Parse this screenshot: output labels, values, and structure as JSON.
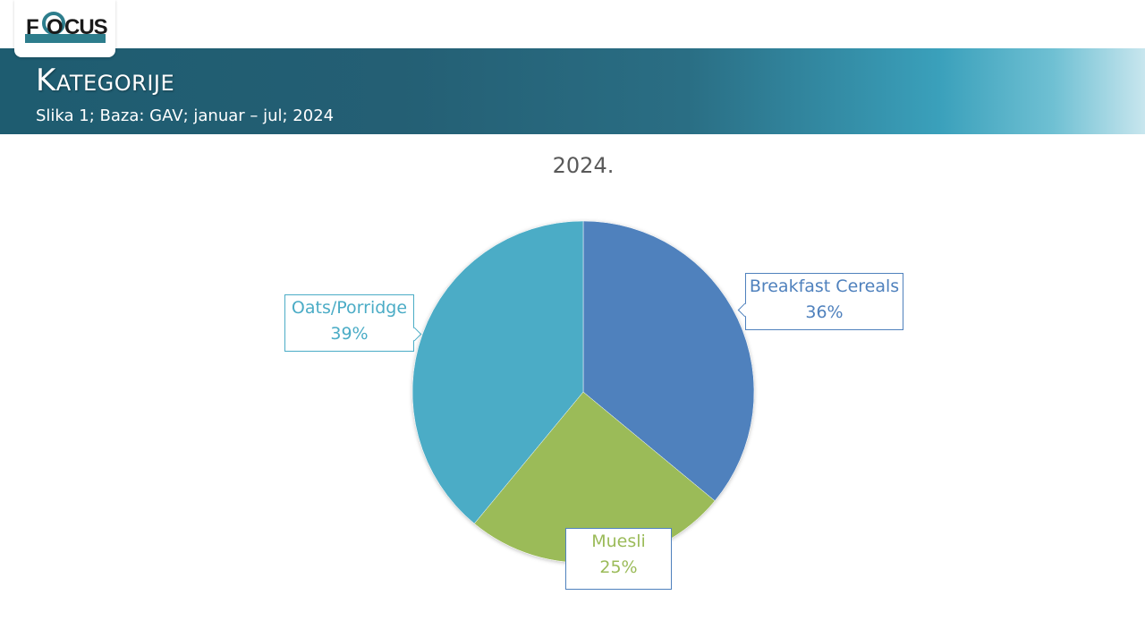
{
  "header": {
    "logo_text": "FOCUS",
    "title": "Kategorije",
    "subtitle": "Slika 1; Baza: GAV; januar – jul; 2024"
  },
  "chart_data": {
    "type": "pie",
    "title": "2024.",
    "start_angle_deg": 0,
    "direction": "clockwise",
    "categories": [
      "Breakfast Cereals",
      "Muesli",
      "Oats/Porridge"
    ],
    "values": [
      36,
      25,
      39
    ],
    "value_labels": [
      "36%",
      "25%",
      "39%"
    ],
    "colors": [
      "#4f81bd",
      "#9bbb59",
      "#4bacc6"
    ],
    "slices": [
      {
        "label": "Breakfast Cereals",
        "pct_text": "36%",
        "value": 36,
        "color": "#4f81bd"
      },
      {
        "label": "Muesli",
        "pct_text": "25%",
        "value": 25,
        "color": "#9bbb59"
      },
      {
        "label": "Oats/Porridge",
        "pct_text": "39%",
        "value": 39,
        "color": "#4bacc6"
      }
    ],
    "legend": "none"
  }
}
